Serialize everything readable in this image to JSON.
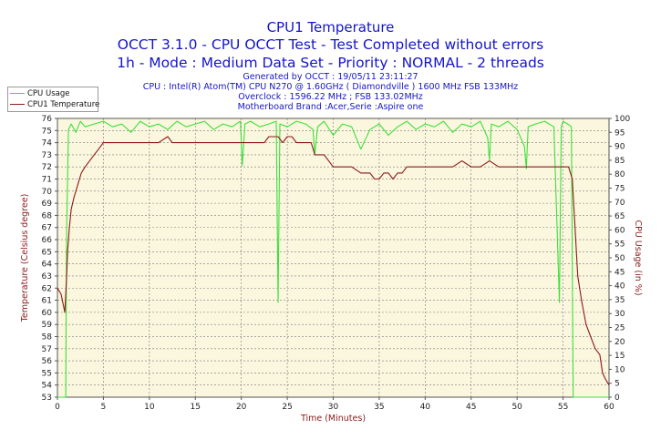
{
  "header": {
    "title": "CPU1 Temperature",
    "line2": "OCCT 3.1.0 - CPU OCCT Test - Test Completed without errors",
    "line3": "1h - Mode : Medium Data Set - Priority : NORMAL - 2 threads",
    "generated": "Generated by OCCT : 19/05/11 23:11:27",
    "cpu": "CPU : Intel(R) Atom(TM) CPU N270 @ 1.60GHz ( Diamondville ) 1600 MHz FSB 133MHz",
    "overclock": "Overclock : 1596.22 MHz ; FSB 133.02MHz",
    "motherboard": "Motherboard Brand :Acer,Serie :Aspire one"
  },
  "colors": {
    "plot_bg": "#fbf6de",
    "grid": "#7a7a7a",
    "temperature": "#8b1a1a",
    "cpu_usage": "#3ce03c",
    "axis_label": "#8b1a1a",
    "title": "#1515c9"
  },
  "chart_data": {
    "type": "line",
    "xlabel": "Time (Minutes)",
    "ylabel": "Temperature (Celsius degree)",
    "y2label": "CPU Usage (in %)",
    "xlim": [
      0,
      60
    ],
    "ylim": [
      53,
      76
    ],
    "y2lim": [
      0,
      100
    ],
    "x_ticks": [
      0,
      5,
      10,
      15,
      20,
      25,
      30,
      35,
      40,
      45,
      50,
      55,
      60
    ],
    "y_ticks": [
      53,
      54,
      55,
      56,
      57,
      58,
      59,
      60,
      61,
      62,
      63,
      64,
      65,
      66,
      67,
      68,
      69,
      70,
      71,
      72,
      73,
      74,
      75,
      76
    ],
    "y2_ticks": [
      0,
      5,
      10,
      15,
      20,
      25,
      30,
      35,
      40,
      45,
      50,
      55,
      60,
      65,
      70,
      75,
      80,
      85,
      90,
      95,
      100
    ],
    "grid": true,
    "legend_position": "top-left",
    "series": [
      {
        "name": "CPU Usage",
        "axis": "right",
        "x": [
          0,
          0.9,
          1.0,
          1.2,
          1.5,
          2,
          2.5,
          3,
          4,
          5,
          6,
          7,
          8,
          9,
          10,
          11,
          12,
          13,
          14,
          15,
          16,
          17,
          18,
          19,
          19.9,
          20.1,
          20.4,
          21,
          22,
          23,
          23.8,
          24.0,
          24.2,
          25,
          26,
          27,
          27.8,
          28.0,
          28.3,
          29,
          30,
          31,
          32,
          33,
          34,
          35,
          36,
          37,
          38,
          39,
          40,
          41,
          42,
          43,
          44,
          45,
          46,
          46.8,
          47.0,
          47.2,
          48,
          49,
          50,
          50.8,
          51.0,
          51.2,
          52,
          53,
          54,
          54.6,
          54.8,
          55.0,
          55.5,
          55.9,
          56.1,
          56.5,
          57,
          58,
          59,
          60
        ],
        "y": [
          0,
          0,
          60,
          96,
          98,
          95,
          99,
          97,
          98,
          99,
          97,
          98,
          95,
          99,
          97,
          98,
          96,
          99,
          97,
          98,
          99,
          96,
          98,
          97,
          99,
          83,
          98,
          99,
          97,
          98,
          99,
          34,
          98,
          97,
          99,
          98,
          96,
          87,
          97,
          99,
          94,
          98,
          97,
          89,
          96,
          98,
          94,
          97,
          99,
          96,
          98,
          97,
          99,
          95,
          98,
          97,
          99,
          93,
          85,
          98,
          97,
          99,
          96,
          90,
          82,
          97,
          98,
          99,
          97,
          34,
          97,
          99,
          98,
          97,
          0,
          0,
          0,
          0,
          0,
          0
        ]
      },
      {
        "name": "CPU1 Temperature",
        "axis": "left",
        "x": [
          0,
          0.4,
          0.8,
          1.0,
          1.1,
          1.3,
          1.5,
          1.8,
          2.2,
          2.6,
          3,
          3.5,
          4,
          4.5,
          5,
          6,
          7,
          8,
          9,
          10,
          11,
          12,
          12.5,
          13,
          14,
          15,
          16,
          17,
          18,
          19,
          20,
          21,
          22,
          22.5,
          23,
          23.5,
          24,
          24.5,
          25,
          25.5,
          26,
          27,
          27.6,
          28,
          28.5,
          29,
          29.5,
          30,
          31,
          32,
          33,
          34,
          34.5,
          35,
          35.5,
          36,
          36.5,
          37,
          37.5,
          38,
          39,
          40,
          41,
          42,
          43,
          44,
          45,
          46,
          47,
          48,
          49,
          50,
          51,
          52,
          53,
          54,
          55,
          55.6,
          56.0,
          56.3,
          56.6,
          57,
          57.5,
          58,
          58.5,
          59,
          59.3,
          59.6,
          60
        ],
        "y": [
          62,
          61.5,
          60,
          63,
          65,
          67,
          68.5,
          69.5,
          70.5,
          71.5,
          72,
          72.5,
          73,
          73.5,
          74,
          74,
          74,
          74,
          74,
          74,
          74,
          74.5,
          74,
          74,
          74,
          74,
          74,
          74,
          74,
          74,
          74,
          74,
          74,
          74,
          74.5,
          74.5,
          74.5,
          74,
          74.5,
          74.5,
          74,
          74,
          74,
          73,
          73,
          73,
          72.5,
          72,
          72,
          72,
          71.5,
          71.5,
          71,
          71,
          71.5,
          71.5,
          71,
          71.5,
          71.5,
          72,
          72,
          72,
          72,
          72,
          72,
          72.5,
          72,
          72,
          72.5,
          72,
          72,
          72,
          72,
          72,
          72,
          72,
          72,
          72,
          71,
          67,
          63,
          61,
          59,
          58,
          57,
          56.5,
          55,
          54.5,
          54
        ]
      }
    ]
  }
}
